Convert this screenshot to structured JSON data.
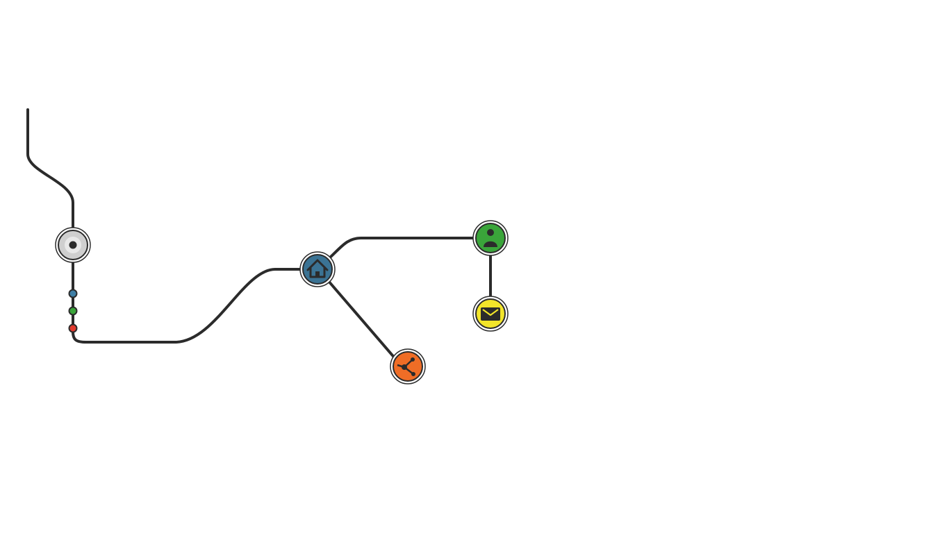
{
  "menu": {
    "colors": {
      "line": "#2b2b2b",
      "start_fill": "#cfcfcf",
      "start_center": "#e8e8e8"
    },
    "start_node": {
      "icon": "radio-dot-icon"
    },
    "status_dots": [
      {
        "name": "status-dot-blue",
        "color": "#3f7fa6"
      },
      {
        "name": "status-dot-green",
        "color": "#3aa53a"
      },
      {
        "name": "status-dot-red",
        "color": "#e23a2e"
      }
    ],
    "nodes": [
      {
        "name": "home-node",
        "icon": "home-icon",
        "color": "#3b7394"
      },
      {
        "name": "share-node",
        "icon": "share-icon",
        "color": "#ef6d26"
      },
      {
        "name": "profile-node",
        "icon": "user-icon",
        "color": "#3aa53a"
      },
      {
        "name": "mail-node",
        "icon": "mail-icon",
        "color": "#f2e52a"
      }
    ]
  }
}
